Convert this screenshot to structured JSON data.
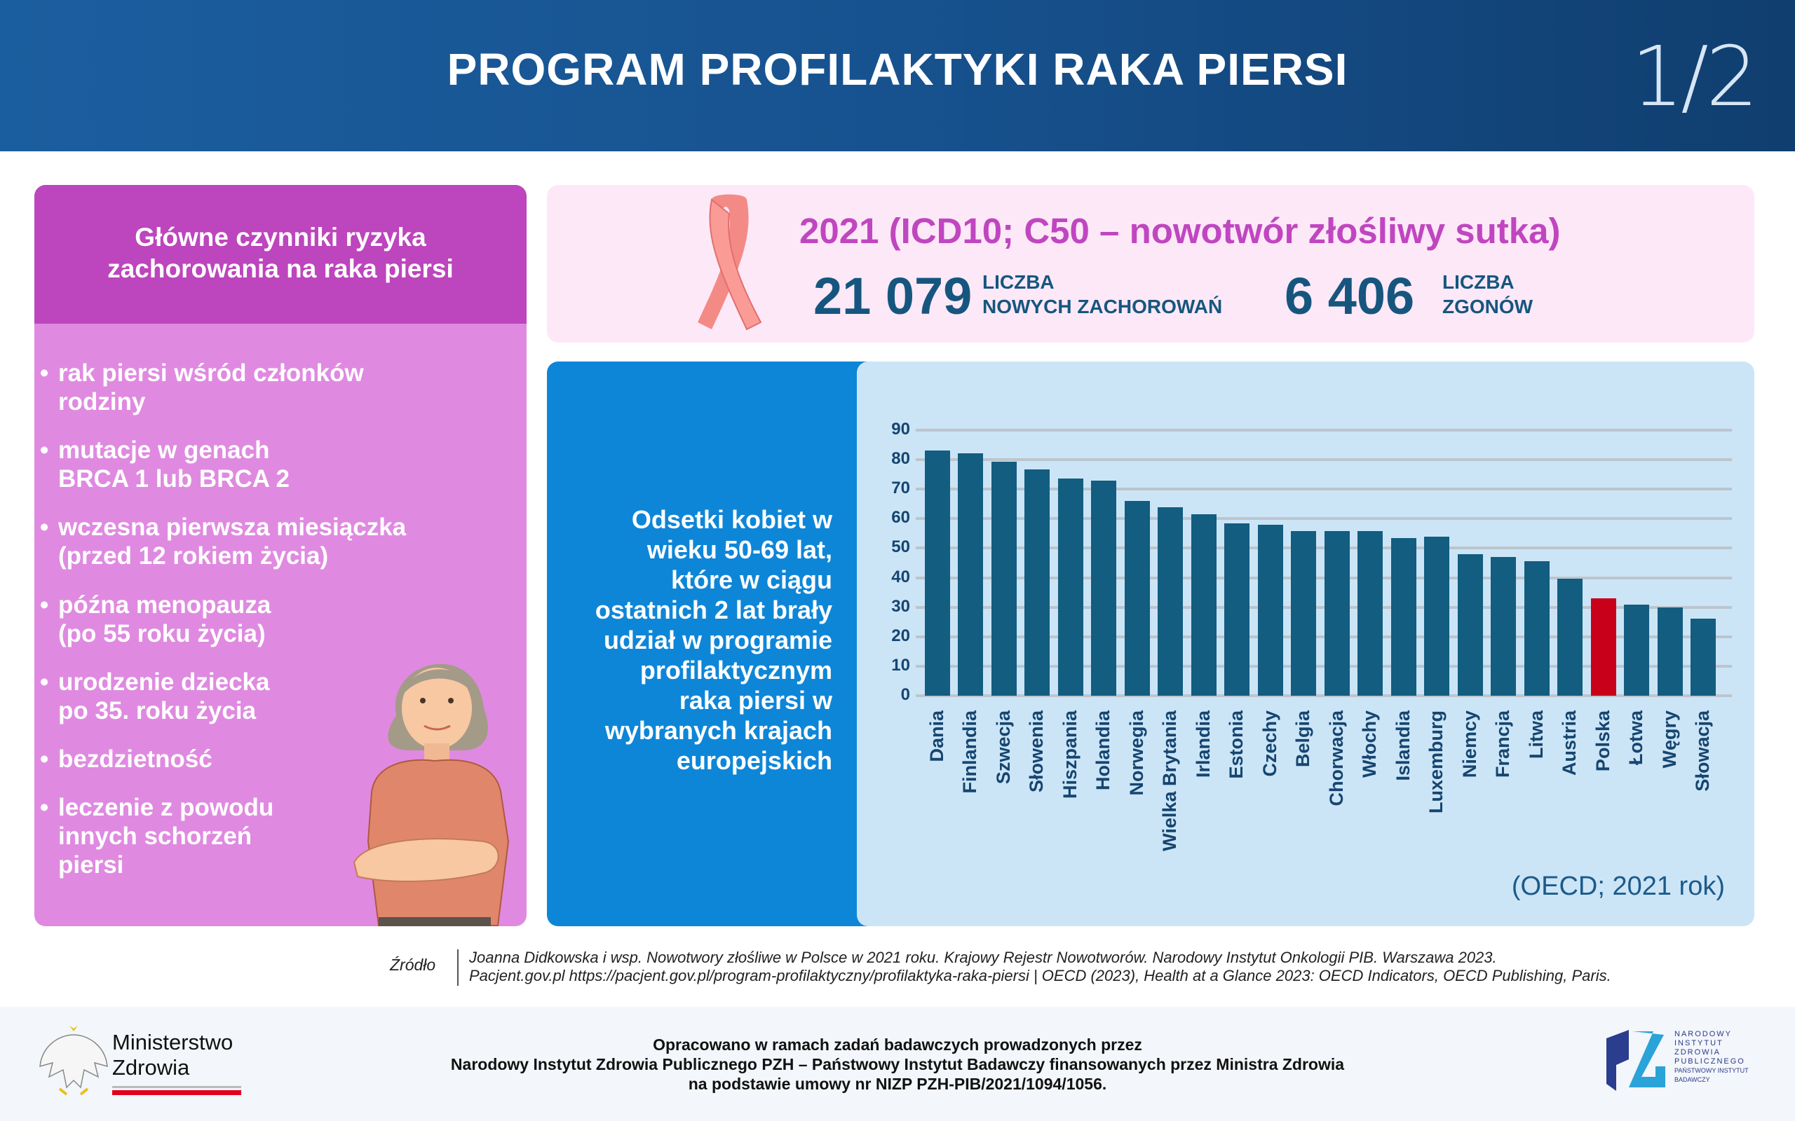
{
  "header": {
    "title": "PROGRAM PROFILAKTYKI RAKA PIERSI",
    "page": "1/2"
  },
  "risk_factors": {
    "title_lines": [
      "Główne czynniki ryzyka",
      "zachorowania na raka piersi"
    ],
    "items": [
      [
        "rak piersi wśród członków",
        "rodziny"
      ],
      [
        "mutacje w genach",
        "BRCA 1 lub BRCA 2"
      ],
      [
        "wczesna pierwsza miesiączka",
        "(przed 12 rokiem życia)"
      ],
      [
        "późna menopauza",
        "(po 55 roku życia)"
      ],
      [
        "urodzenie dziecka",
        "po 35. roku życia"
      ],
      [
        "bezdzietność"
      ],
      [
        "leczenie z powodu",
        "innych schorzeń",
        "piersi"
      ]
    ]
  },
  "stats": {
    "title": "2021  (ICD10; C50 – nowotwór złośliwy sutka)",
    "new_cases": {
      "value": "21 079",
      "label1": "LICZBA",
      "label2": "NOWYCH ZACHOROWAŃ"
    },
    "deaths": {
      "value": "6 406",
      "label1": "LICZBA",
      "label2": "ZGONÓW"
    }
  },
  "chart_description_lines": [
    "Odsetki kobiet w",
    "wieku 50-69 lat,",
    "które w ciągu",
    "ostatnich 2 lat brały",
    "udział w programie",
    "profilaktycznym",
    "raka piersi w",
    "wybranych krajach",
    "europejskich"
  ],
  "chart_data": {
    "type": "bar",
    "title": "Odsetki kobiet w wieku 50-69 lat, które w ciągu ostatnich 2 lat brały udział w programie profilaktycznym raka piersi w wybranych krajach europejskich",
    "categories": [
      "Dania",
      "Finlandia",
      "Szwecja",
      "Słowenia",
      "Hiszpania",
      "Holandia",
      "Norwegia",
      "Wielka Brytania",
      "Irlandia",
      "Estonia",
      "Czechy",
      "Belgia",
      "Chorwacja",
      "Włochy",
      "Islandia",
      "Luxemburg",
      "Niemcy",
      "Francja",
      "Litwa",
      "Austria",
      "Polska",
      "Łotwa",
      "Węgry",
      "Słowacja"
    ],
    "values": [
      83.2,
      82.2,
      79.4,
      76.8,
      73.7,
      72.8,
      65.9,
      63.8,
      61.6,
      58.3,
      57.9,
      55.7,
      55.7,
      55.7,
      53.4,
      53.8,
      47.9,
      47.0,
      45.5,
      39.6,
      33.0,
      30.9,
      29.9,
      26.1
    ],
    "highlight": "Polska",
    "yticks": [
      "0",
      "10",
      "20",
      "30",
      "40",
      "50",
      "60",
      "70",
      "80",
      "90"
    ],
    "ylim": [
      0,
      90
    ],
    "grid": true,
    "source_note": "(OECD; 2021 rok)",
    "colors": {
      "bar": "#125d80",
      "highlight": "#c8001a"
    }
  },
  "source": {
    "label": "Źródło",
    "line1": "Joanna Didkowska i wsp. Nowotwory złośliwe w Polsce w 2021 roku. Krajowy Rejestr Nowotworów. Narodowy Instytut Onkologii PIB. Warszawa 2023.",
    "line2": "Pacjent.gov.pl https://pacjent.gov.pl/program-profilaktyczny/profilaktyka-raka-piersi   |   OECD (2023), Health at a Glance 2023: OECD Indicators, OECD Publishing, Paris."
  },
  "footer": {
    "lines": [
      "Opracowano w ramach zadań badawczych prowadzonych przez",
      "Narodowy Instytut Zdrowia Publicznego PZH – Państwowy Instytut Badawczy finansowanych przez Ministra Zdrowia",
      "na podstawie umowy nr NIZP PZH-PIB/2021/1094/1056."
    ],
    "ministry": [
      "Ministerstwo",
      "Zdrowia"
    ],
    "nizp_logo_text": [
      "NARODOWY",
      "INSTYTUT",
      "ZDROWIA",
      "PUBLICZNEGO",
      "PAŃSTWOWY INSTYTUT",
      "BADAWCZY"
    ]
  }
}
